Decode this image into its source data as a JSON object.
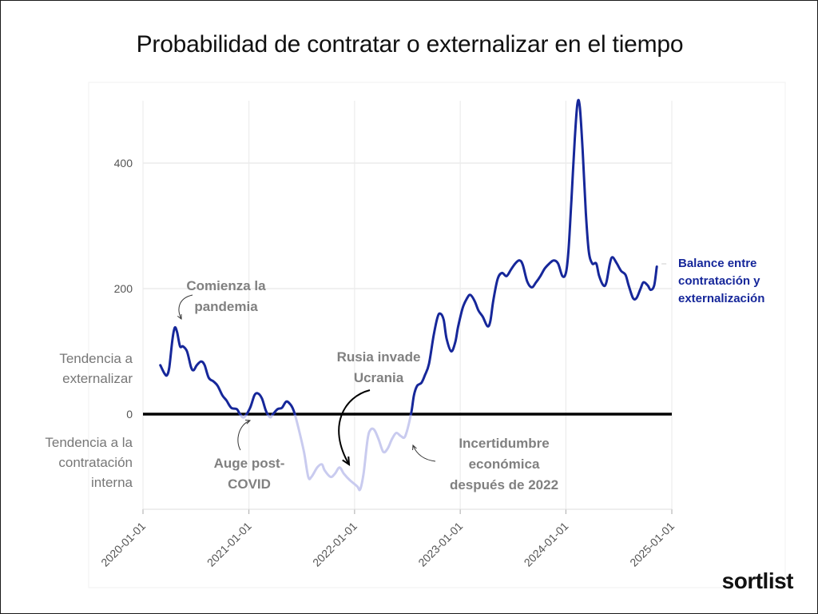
{
  "chart_data": {
    "type": "line",
    "title": "Probabilidad de contratar o externalizar en el tiempo",
    "xlabel": "",
    "ylabel": "",
    "x_ticks": [
      "2020-01-01",
      "2021-01-01",
      "2022-01-01",
      "2023-01-01",
      "2024-01-01",
      "2025-01-01"
    ],
    "y_ticks": [
      0,
      200,
      400
    ],
    "xlim": [
      "2020-01-01",
      "2025-01-01"
    ],
    "ylim": [
      -160,
      500
    ],
    "grid": true,
    "zero_line": true,
    "side_labels": {
      "positive": [
        "Tendencia a",
        "externalizar"
      ],
      "negative": [
        "Tendencia a la",
        "contratación",
        "interna"
      ]
    },
    "series": [
      {
        "name": "Balance entre contratación y externalización",
        "name_lines": [
          "Balance entre",
          "contratación y",
          "externalización"
        ],
        "color": "#16279a",
        "faded_color": "#c9cbef",
        "points": [
          [
            "2020-03-01",
            78
          ],
          [
            "2020-03-15",
            65
          ],
          [
            "2020-03-24",
            62
          ],
          [
            "2020-04-01",
            75
          ],
          [
            "2020-04-12",
            120
          ],
          [
            "2020-04-20",
            138
          ],
          [
            "2020-04-28",
            130
          ],
          [
            "2020-05-08",
            108
          ],
          [
            "2020-05-18",
            108
          ],
          [
            "2020-06-01",
            100
          ],
          [
            "2020-06-15",
            75
          ],
          [
            "2020-06-24",
            70
          ],
          [
            "2020-07-05",
            78
          ],
          [
            "2020-07-20",
            84
          ],
          [
            "2020-08-01",
            78
          ],
          [
            "2020-08-15",
            58
          ],
          [
            "2020-09-01",
            52
          ],
          [
            "2020-09-15",
            45
          ],
          [
            "2020-10-01",
            30
          ],
          [
            "2020-10-15",
            22
          ],
          [
            "2020-11-01",
            10
          ],
          [
            "2020-11-20",
            8
          ],
          [
            "2020-12-01",
            0
          ],
          [
            "2020-12-15",
            -5
          ],
          [
            "2021-01-05",
            10
          ],
          [
            "2021-01-20",
            30
          ],
          [
            "2021-02-01",
            33
          ],
          [
            "2021-02-15",
            25
          ],
          [
            "2021-03-01",
            5
          ],
          [
            "2021-03-15",
            -5
          ],
          [
            "2021-03-25",
            0
          ],
          [
            "2021-04-10",
            8
          ],
          [
            "2021-04-25",
            10
          ],
          [
            "2021-05-10",
            20
          ],
          [
            "2021-05-25",
            15
          ],
          [
            "2021-06-05",
            5
          ],
          [
            "2021-06-20",
            -20
          ],
          [
            "2021-07-10",
            -60
          ],
          [
            "2021-07-25",
            -100
          ],
          [
            "2021-08-05",
            -100
          ],
          [
            "2021-08-25",
            -85
          ],
          [
            "2021-09-10",
            -80
          ],
          [
            "2021-09-20",
            -90
          ],
          [
            "2021-10-10",
            -100
          ],
          [
            "2021-10-25",
            -95
          ],
          [
            "2021-11-10",
            -85
          ],
          [
            "2021-11-25",
            -95
          ],
          [
            "2021-12-15",
            -105
          ],
          [
            "2022-01-10",
            -115
          ],
          [
            "2022-01-20",
            -120
          ],
          [
            "2022-02-01",
            -95
          ],
          [
            "2022-02-15",
            -40
          ],
          [
            "2022-02-25",
            -25
          ],
          [
            "2022-03-10",
            -25
          ],
          [
            "2022-03-25",
            -40
          ],
          [
            "2022-04-10",
            -60
          ],
          [
            "2022-04-25",
            -55
          ],
          [
            "2022-05-10",
            -40
          ],
          [
            "2022-05-25",
            -30
          ],
          [
            "2022-06-10",
            -35
          ],
          [
            "2022-06-25",
            -35
          ],
          [
            "2022-07-15",
            0
          ],
          [
            "2022-07-25",
            30
          ],
          [
            "2022-08-05",
            45
          ],
          [
            "2022-08-20",
            50
          ],
          [
            "2022-09-01",
            62
          ],
          [
            "2022-09-15",
            80
          ],
          [
            "2022-10-01",
            125
          ],
          [
            "2022-10-15",
            155
          ],
          [
            "2022-10-25",
            160
          ],
          [
            "2022-11-05",
            150
          ],
          [
            "2022-11-15",
            120
          ],
          [
            "2022-12-01",
            100
          ],
          [
            "2022-12-15",
            115
          ],
          [
            "2022-12-25",
            140
          ],
          [
            "2023-01-10",
            170
          ],
          [
            "2023-01-25",
            185
          ],
          [
            "2023-02-05",
            190
          ],
          [
            "2023-02-20",
            180
          ],
          [
            "2023-03-05",
            165
          ],
          [
            "2023-03-20",
            155
          ],
          [
            "2023-04-05",
            140
          ],
          [
            "2023-04-15",
            148
          ],
          [
            "2023-04-25",
            180
          ],
          [
            "2023-05-10",
            215
          ],
          [
            "2023-05-25",
            225
          ],
          [
            "2023-06-10",
            220
          ],
          [
            "2023-06-25",
            230
          ],
          [
            "2023-07-10",
            240
          ],
          [
            "2023-07-25",
            245
          ],
          [
            "2023-08-05",
            238
          ],
          [
            "2023-08-20",
            212
          ],
          [
            "2023-09-05",
            202
          ],
          [
            "2023-09-20",
            210
          ],
          [
            "2023-10-05",
            220
          ],
          [
            "2023-10-20",
            232
          ],
          [
            "2023-11-05",
            240
          ],
          [
            "2023-11-20",
            245
          ],
          [
            "2023-12-05",
            240
          ],
          [
            "2023-12-20",
            220
          ],
          [
            "2024-01-01",
            225
          ],
          [
            "2024-01-10",
            260
          ],
          [
            "2024-01-20",
            340
          ],
          [
            "2024-02-01",
            440
          ],
          [
            "2024-02-10",
            495
          ],
          [
            "2024-02-18",
            490
          ],
          [
            "2024-02-28",
            420
          ],
          [
            "2024-03-10",
            320
          ],
          [
            "2024-03-20",
            260
          ],
          [
            "2024-04-01",
            240
          ],
          [
            "2024-04-15",
            240
          ],
          [
            "2024-04-25",
            220
          ],
          [
            "2024-05-10",
            205
          ],
          [
            "2024-05-20",
            210
          ],
          [
            "2024-06-01",
            240
          ],
          [
            "2024-06-10",
            250
          ],
          [
            "2024-06-25",
            240
          ],
          [
            "2024-07-10",
            228
          ],
          [
            "2024-07-25",
            222
          ],
          [
            "2024-08-05",
            205
          ],
          [
            "2024-08-20",
            185
          ],
          [
            "2024-09-01",
            185
          ],
          [
            "2024-09-15",
            200
          ],
          [
            "2024-09-25",
            210
          ],
          [
            "2024-10-10",
            205
          ],
          [
            "2024-10-20",
            198
          ],
          [
            "2024-11-01",
            205
          ],
          [
            "2024-11-10",
            235
          ]
        ]
      }
    ],
    "annotations": [
      {
        "id": "pandemia",
        "lines": [
          "Comienza la",
          "pandemia"
        ],
        "arrow": "curved",
        "points_to": [
          "2020-04-15",
          130
        ]
      },
      {
        "id": "auge",
        "lines": [
          "Auge post-",
          "COVID"
        ],
        "arrow": "curved",
        "points_to": [
          "2020-12-20",
          -5
        ]
      },
      {
        "id": "rusia",
        "lines": [
          "Rusia invade",
          "Ucrania"
        ],
        "arrow": "curved-bold",
        "points_to": [
          "2022-01-01",
          -80
        ]
      },
      {
        "id": "incertidumbre",
        "lines": [
          "Incertidumbre",
          "económica",
          "después de 2022"
        ],
        "arrow": "curved",
        "points_to": [
          "2022-07-01",
          -45
        ]
      }
    ]
  },
  "brand": {
    "name": "sortlist"
  }
}
